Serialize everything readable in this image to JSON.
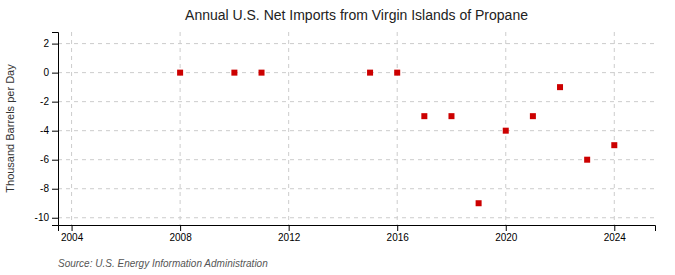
{
  "chart_data": {
    "type": "scatter",
    "title": "Annual U.S. Net Imports from Virgin Islands of Propane",
    "ylabel": "Thousand Barrels per Day",
    "annotation": "Source: U.S. Energy Information Administration",
    "x": [
      2008,
      2010,
      2011,
      2015,
      2016,
      2017,
      2018,
      2019,
      2020,
      2021,
      2022,
      2023,
      2024
    ],
    "values": [
      0,
      0,
      0,
      0,
      0,
      -3,
      -3,
      -9,
      -4,
      -3,
      -1,
      -6,
      -5
    ],
    "color": "#cc0000",
    "marker": "square",
    "xlim": [
      2003.5,
      2025.5
    ],
    "ylim": [
      -10.5,
      2.8
    ],
    "xticks": [
      2004,
      2008,
      2012,
      2016,
      2020,
      2024
    ],
    "yticks": [
      2,
      0,
      -2,
      -4,
      -6,
      -8,
      -10
    ],
    "grid": true
  }
}
